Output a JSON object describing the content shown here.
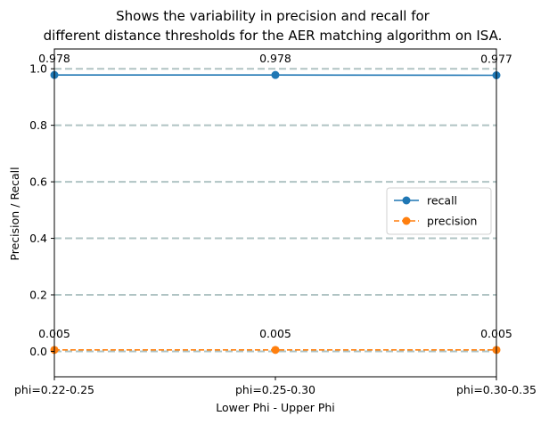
{
  "chart_data": {
    "type": "line",
    "title_lines": [
      "Shows the variability in precision and recall for",
      "different distance thresholds for the AER matching algorithm on ISA."
    ],
    "xlabel": "Lower Phi - Upper Phi",
    "ylabel": "Precision / Recall",
    "categories": [
      "phi=0.22-0.25",
      "phi=0.25-0.30",
      "phi=0.30-0.35"
    ],
    "ylim": [
      -0.09,
      1.07
    ],
    "yticks": [
      0.0,
      0.2,
      0.4,
      0.6,
      0.8,
      1.0
    ],
    "ytick_labels": [
      "0.0",
      "0.2",
      "0.4",
      "0.6",
      "0.8",
      "1.0"
    ],
    "grid": "horizontal dashed",
    "legend_position": "center-right",
    "series": [
      {
        "name": "recall",
        "values": [
          0.978,
          0.978,
          0.977
        ],
        "labels": [
          "0.978",
          "0.978",
          "0.977"
        ],
        "color": "#1f77b4",
        "line_style": "solid",
        "marker": "circle"
      },
      {
        "name": "precision",
        "values": [
          0.005,
          0.005,
          0.005
        ],
        "labels": [
          "0.005",
          "0.005",
          "0.005"
        ],
        "color": "#ff7f0e",
        "line_style": "dashed",
        "marker": "circle"
      }
    ],
    "grid_color": "#b0c4c4"
  }
}
